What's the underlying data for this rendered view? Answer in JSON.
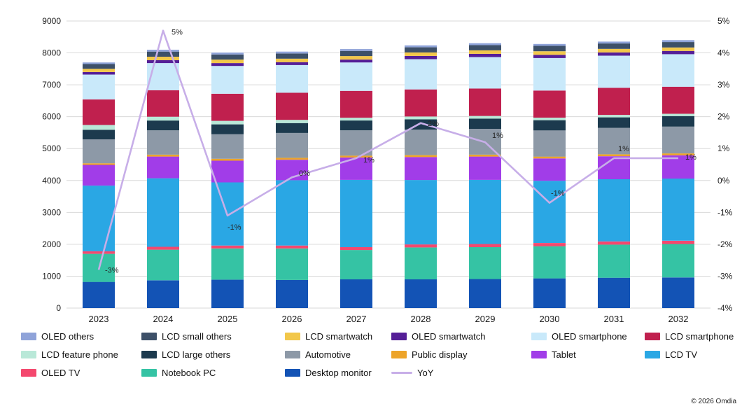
{
  "footer": "© 2026 Omdia",
  "chart_data": {
    "type": "bar",
    "subtype": "stacked-bar-with-yoy-line",
    "title": "",
    "categories": [
      "2023",
      "2024",
      "2025",
      "2026",
      "2027",
      "2028",
      "2029",
      "2030",
      "2031",
      "2032"
    ],
    "series": [
      {
        "name": "Desktop monitor",
        "color": "#1353b5",
        "values": [
          820,
          870,
          890,
          880,
          900,
          900,
          910,
          930,
          950,
          960
        ]
      },
      {
        "name": "Notebook PC",
        "color": "#35c3a4",
        "values": [
          880,
          960,
          980,
          990,
          920,
          1000,
          1000,
          1010,
          1040,
          1050
        ]
      },
      {
        "name": "OLED TV",
        "color": "#f4486e",
        "values": [
          80,
          90,
          90,
          90,
          90,
          95,
          100,
          100,
          100,
          100
        ]
      },
      {
        "name": "LCD TV",
        "color": "#2aa7e4",
        "values": [
          2060,
          2150,
          1980,
          2050,
          2110,
          2020,
          2010,
          1950,
          1950,
          1950
        ]
      },
      {
        "name": "Tablet",
        "color": "#a13de8",
        "values": [
          650,
          680,
          680,
          640,
          700,
          720,
          730,
          700,
          720,
          730
        ]
      },
      {
        "name": "Public display",
        "color": "#eda429",
        "values": [
          50,
          60,
          60,
          60,
          60,
          60,
          60,
          60,
          60,
          60
        ]
      },
      {
        "name": "Automotive",
        "color": "#8d99a7",
        "values": [
          750,
          760,
          770,
          780,
          790,
          800,
          810,
          820,
          830,
          840
        ]
      },
      {
        "name": "LCD large others",
        "color": "#1c3a4e",
        "values": [
          300,
          310,
          310,
          310,
          310,
          320,
          320,
          320,
          330,
          330
        ]
      },
      {
        "name": "LCD feature phone",
        "color": "#b9e8d8",
        "values": [
          150,
          120,
          110,
          100,
          90,
          90,
          85,
          80,
          75,
          70
        ]
      },
      {
        "name": "LCD smartphone",
        "color": "#c0204e",
        "values": [
          800,
          830,
          850,
          850,
          840,
          850,
          860,
          850,
          850,
          850
        ]
      },
      {
        "name": "OLED smartphone",
        "color": "#c9e9fa",
        "values": [
          780,
          850,
          870,
          870,
          890,
          950,
          985,
          1020,
          1010,
          1020
        ]
      },
      {
        "name": "OLED smartwatch",
        "color": "#551f97",
        "values": [
          80,
          90,
          90,
          90,
          90,
          100,
          100,
          100,
          100,
          100
        ]
      },
      {
        "name": "LCD smartwatch",
        "color": "#f2c74a",
        "values": [
          100,
          110,
          110,
          110,
          110,
          110,
          110,
          110,
          110,
          110
        ]
      },
      {
        "name": "LCD small others",
        "color": "#3d5068",
        "values": [
          150,
          160,
          160,
          160,
          160,
          160,
          165,
          170,
          170,
          170
        ]
      },
      {
        "name": "OLED others",
        "color": "#8fa3d9",
        "values": [
          50,
          60,
          60,
          60,
          60,
          60,
          60,
          60,
          60,
          60
        ]
      }
    ],
    "line": {
      "name": "YoY",
      "color": "#c7aee8",
      "values": [
        -2.8,
        4.7,
        -1.1,
        0.1,
        0.7,
        1.8,
        1.2,
        -0.7,
        0.7,
        0.7
      ],
      "point_labels": [
        "-3%",
        "5%",
        "-1%",
        "0%",
        "1%",
        "2%",
        "1%",
        "-1%",
        "1%",
        "1%"
      ]
    },
    "left_axis": {
      "min": 0,
      "max": 9000,
      "step": 1000,
      "tick_labels": [
        "0",
        "1000",
        "2000",
        "3000",
        "4000",
        "5000",
        "6000",
        "7000",
        "8000",
        "9000"
      ]
    },
    "right_axis": {
      "min": -4,
      "max": 5,
      "step": 1,
      "format": "percent",
      "tick_labels": [
        "-4%",
        "-3%",
        "-2%",
        "-1%",
        "0%",
        "1%",
        "2%",
        "3%",
        "4%",
        "5%"
      ]
    },
    "grid": "horizontal",
    "legend_position": "bottom",
    "legend_order": [
      "OLED others",
      "LCD small others",
      "LCD smartwatch",
      "OLED smartwatch",
      "OLED smartphone",
      "LCD smartphone",
      "LCD feature phone",
      "LCD large others",
      "Automotive",
      "Public display",
      "Tablet",
      "LCD TV",
      "OLED TV",
      "Notebook PC",
      "Desktop monitor",
      "YoY"
    ]
  }
}
